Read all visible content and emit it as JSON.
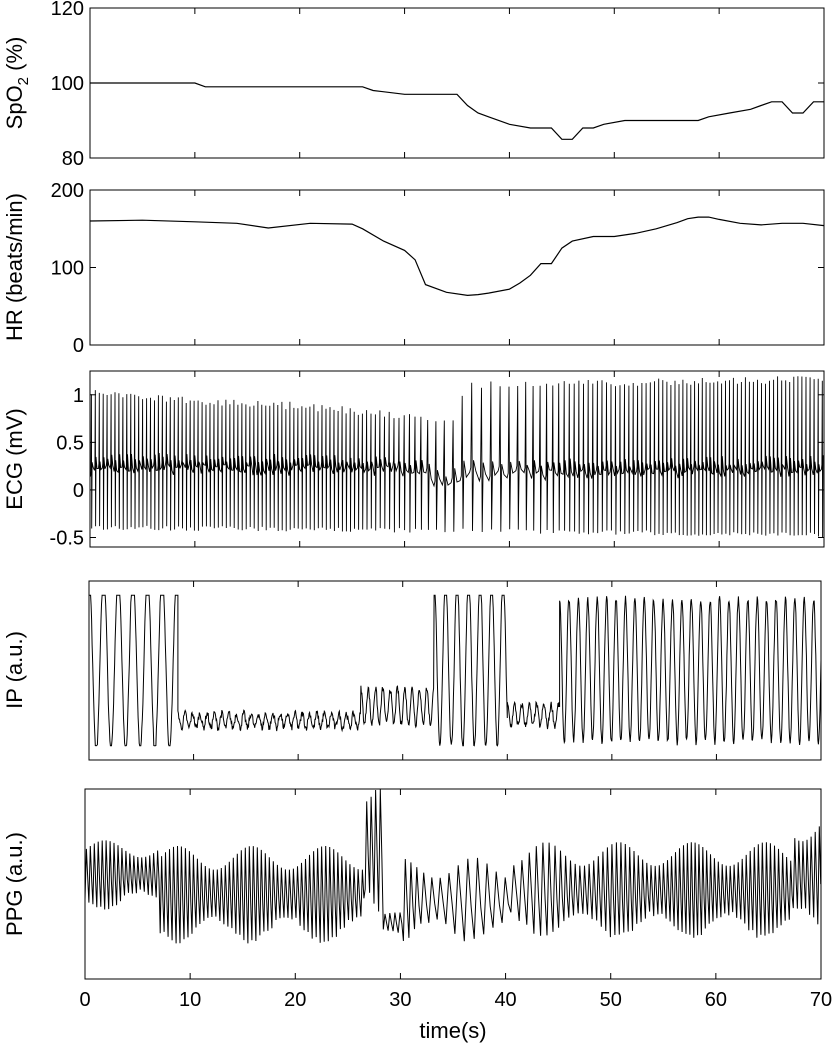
{
  "figure": {
    "xlabel": "time(s)",
    "x_ticks": [
      0,
      10,
      20,
      30,
      40,
      50,
      60,
      70
    ]
  },
  "chart_data": [
    {
      "type": "line",
      "ylabel_main": "SpO",
      "ylabel_sub": "2",
      "ylabel_tail": " (%)",
      "x_range": [
        0,
        70
      ],
      "ylim": [
        80,
        120
      ],
      "y_ticks": [
        80,
        100,
        120
      ],
      "series": [
        {
          "x": [
            0,
            10,
            11,
            26,
            27,
            30,
            33,
            35,
            36,
            37,
            38,
            40,
            42,
            44,
            45,
            46,
            47,
            48,
            49,
            51,
            53,
            58,
            59,
            61,
            63,
            64,
            65,
            66,
            67,
            68,
            69,
            70
          ],
          "y": [
            100,
            100,
            99,
            99,
            98,
            97,
            97,
            97,
            94,
            92,
            91,
            89,
            88,
            88,
            85,
            85,
            88,
            88,
            89,
            90,
            90,
            90,
            91,
            92,
            93,
            94,
            95,
            95,
            92,
            92,
            95,
            95
          ]
        }
      ]
    },
    {
      "type": "line",
      "ylabel": "HR (beats/min)",
      "x_range": [
        0,
        70
      ],
      "ylim": [
        0,
        200
      ],
      "y_ticks": [
        0,
        100,
        200
      ],
      "series": [
        {
          "x": [
            0,
            5,
            10,
            14,
            17,
            21,
            25,
            26,
            28,
            30,
            31,
            32,
            34,
            36,
            37,
            38,
            40,
            41,
            42,
            43,
            44,
            45,
            46,
            48,
            50,
            52,
            54,
            56,
            57,
            58,
            59,
            60,
            62,
            64,
            66,
            68,
            70
          ],
          "y": [
            160,
            161,
            159,
            157,
            151,
            157,
            156,
            150,
            134,
            122,
            110,
            78,
            68,
            64,
            65,
            67,
            72,
            80,
            90,
            105,
            105,
            125,
            134,
            140,
            140,
            144,
            150,
            158,
            163,
            165,
            165,
            162,
            157,
            155,
            157,
            157,
            154
          ]
        }
      ]
    },
    {
      "type": "line",
      "ylabel": "ECG (mV)",
      "x_range": [
        0,
        70
      ],
      "ylim": [
        -0.6,
        1.25
      ],
      "y_ticks": [
        -0.5,
        0,
        0.5,
        1
      ],
      "y_tick_labels": [
        "-0.5",
        "0",
        "0.5",
        "1"
      ],
      "signal": {
        "kind": "ecg",
        "beat_rate_bpm": [
          [
            0,
            160
          ],
          [
            25,
            156
          ],
          [
            28,
            134
          ],
          [
            31,
            110
          ],
          [
            32,
            78
          ],
          [
            36,
            64
          ],
          [
            40,
            72
          ],
          [
            44,
            105
          ],
          [
            46,
            134
          ],
          [
            50,
            140
          ],
          [
            56,
            158
          ],
          [
            58,
            165
          ],
          [
            62,
            157
          ],
          [
            70,
            154
          ]
        ],
        "r_peak_mv": [
          [
            0,
            1.08
          ],
          [
            7,
            1.0
          ],
          [
            20,
            0.92
          ],
          [
            30,
            0.82
          ],
          [
            35,
            0.75
          ],
          [
            35.5,
            1.15
          ],
          [
            70,
            1.2
          ]
        ],
        "s_trough_mv": [
          [
            0,
            -0.42
          ],
          [
            30,
            -0.45
          ],
          [
            35,
            -0.45
          ],
          [
            70,
            -0.5
          ]
        ],
        "baseline_mv": [
          [
            0,
            0.2
          ],
          [
            5,
            0.22
          ],
          [
            30,
            0.2
          ],
          [
            34,
            0.05
          ],
          [
            35,
            0.15
          ],
          [
            70,
            0.2
          ]
        ]
      }
    },
    {
      "type": "line",
      "ylabel": "IP (a.u.)",
      "x_range": [
        0,
        70
      ],
      "ylim": [
        0,
        1
      ],
      "y_ticks": [],
      "signal": {
        "kind": "respiration",
        "segments": [
          {
            "t0": 0,
            "t1": 8.5,
            "amp": 0.5,
            "mid": 0.55,
            "period": 1.4,
            "clip": true
          },
          {
            "t0": 8.5,
            "t1": 26,
            "amp": 0.04,
            "mid": 0.22,
            "period": 0.7,
            "clip": false
          },
          {
            "t0": 26,
            "t1": 33,
            "amp": 0.1,
            "mid": 0.3,
            "period": 0.7,
            "clip": false
          },
          {
            "t0": 33,
            "t1": 40,
            "amp": 0.48,
            "mid": 0.55,
            "period": 1.1,
            "clip": true
          },
          {
            "t0": 40,
            "t1": 45,
            "amp": 0.06,
            "mid": 0.25,
            "period": 0.7,
            "clip": false
          },
          {
            "t0": 45,
            "t1": 70,
            "amp": 0.4,
            "mid": 0.5,
            "period": 0.9,
            "clip": true
          }
        ]
      }
    },
    {
      "type": "line",
      "ylabel": "PPG (a.u.)",
      "x_range": [
        0,
        70
      ],
      "ylim": [
        0,
        1
      ],
      "y_ticks": [],
      "signal": {
        "kind": "ppg",
        "beat_rate_bpm": [
          [
            0,
            160
          ],
          [
            25,
            156
          ],
          [
            28,
            134
          ],
          [
            31,
            110
          ],
          [
            32,
            78
          ],
          [
            36,
            64
          ],
          [
            40,
            72
          ],
          [
            44,
            105
          ],
          [
            46,
            134
          ],
          [
            50,
            140
          ],
          [
            56,
            158
          ],
          [
            58,
            165
          ],
          [
            62,
            157
          ],
          [
            70,
            154
          ]
        ],
        "segments": [
          {
            "t0": 0,
            "t1": 7,
            "amp": 0.18,
            "mid": 0.55
          },
          {
            "t0": 7,
            "t1": 26.5,
            "amp": 0.25,
            "mid": 0.45
          },
          {
            "t0": 26.5,
            "t1": 28,
            "amp": 0.45,
            "mid": 0.7
          },
          {
            "t0": 28,
            "t1": 30,
            "amp": 0.05,
            "mid": 0.3
          },
          {
            "t0": 30,
            "t1": 40,
            "amp": 0.22,
            "mid": 0.42
          },
          {
            "t0": 40,
            "t1": 67,
            "amp": 0.25,
            "mid": 0.47
          },
          {
            "t0": 67,
            "t1": 70,
            "amp": 0.35,
            "mid": 0.55
          }
        ]
      }
    }
  ]
}
